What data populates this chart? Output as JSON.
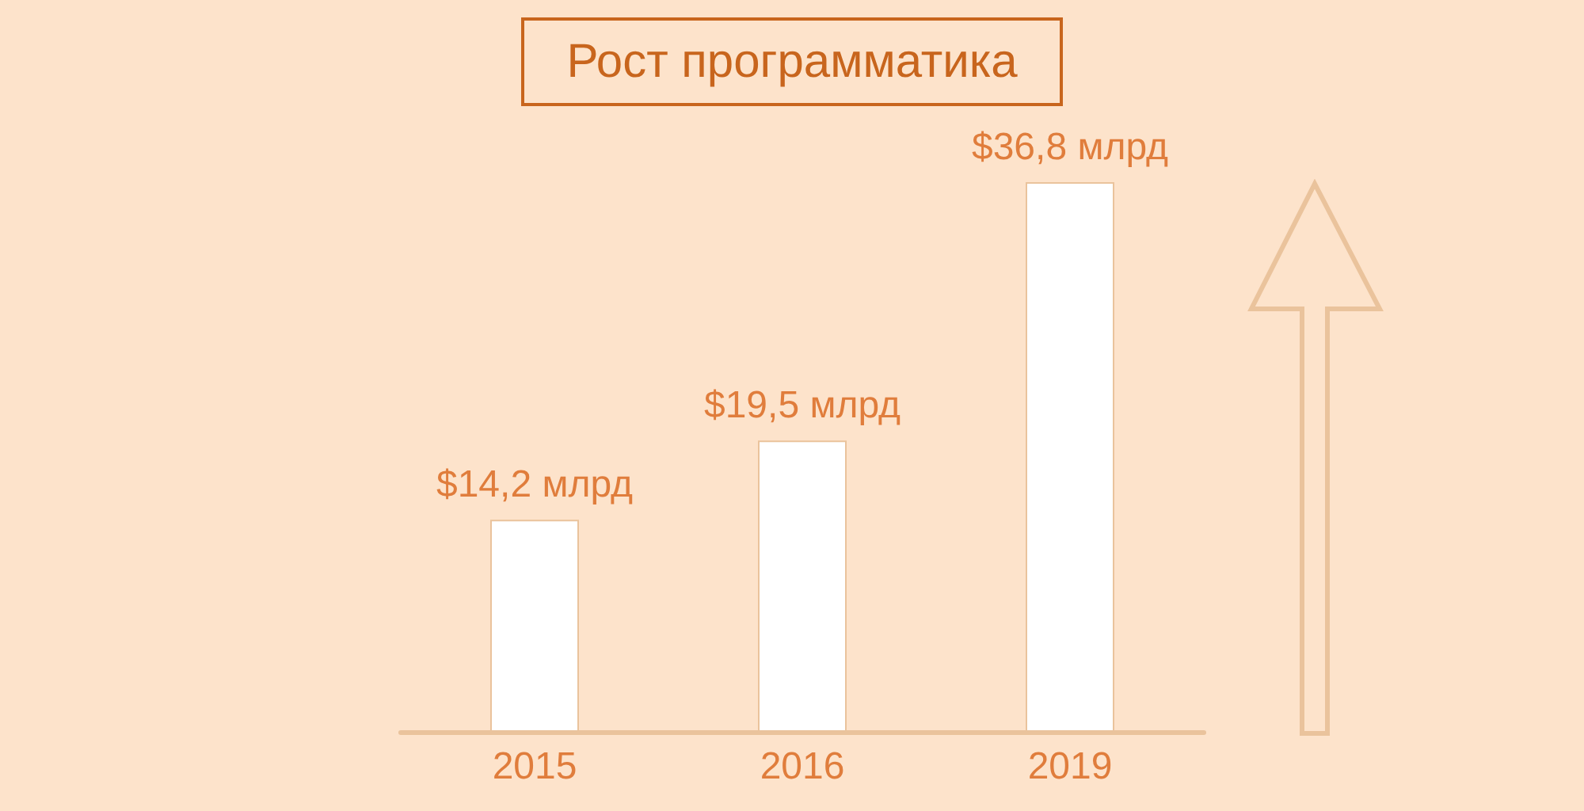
{
  "chart_data": {
    "type": "bar",
    "title": "Рост программатика",
    "categories": [
      "2015",
      "2016",
      "2019"
    ],
    "values": [
      14.2,
      19.5,
      36.8
    ],
    "value_labels": [
      "$14,2 млрд",
      "$19,5 млрд",
      "$36,8 млрд"
    ],
    "color": "#ffffff",
    "tick_labels": "x"
  }
}
